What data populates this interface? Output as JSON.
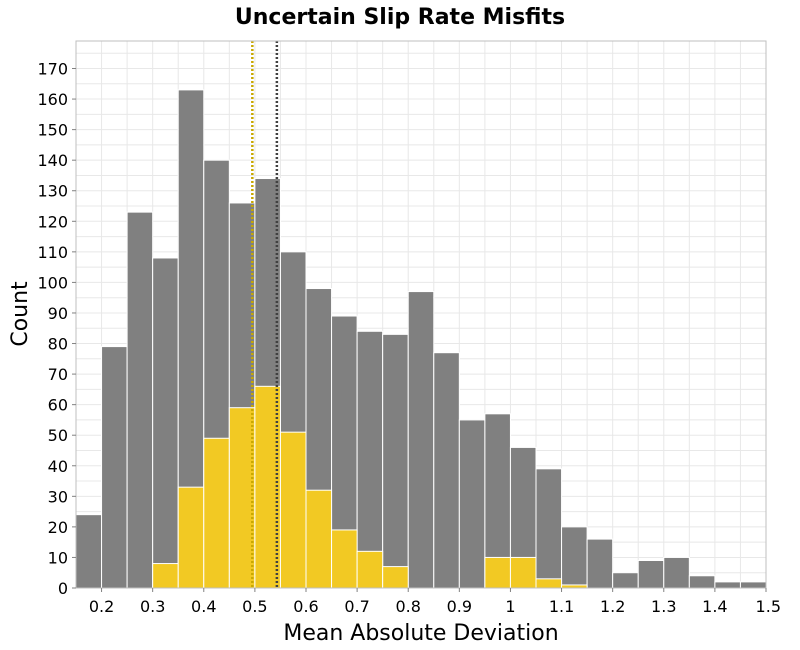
{
  "chart_data": {
    "type": "bar",
    "title": "Uncertain Slip Rate Misfits",
    "xlabel": "Mean Absolute Deviation",
    "ylabel": "Count",
    "xlim": [
      0.15,
      1.5
    ],
    "ylim": [
      0,
      179
    ],
    "xticks": [
      "0.2",
      "0.3",
      "0.4",
      "0.5",
      "0.6",
      "0.7",
      "0.8",
      "0.9",
      "1",
      "1.1",
      "1.2",
      "1.3",
      "1.4",
      "1.5"
    ],
    "yticks": [
      "0",
      "10",
      "20",
      "30",
      "40",
      "50",
      "60",
      "70",
      "80",
      "90",
      "100",
      "110",
      "120",
      "130",
      "140",
      "150",
      "160",
      "170"
    ],
    "bin_width": 0.05,
    "bin_centers": [
      0.175,
      0.225,
      0.275,
      0.325,
      0.375,
      0.425,
      0.475,
      0.525,
      0.575,
      0.625,
      0.675,
      0.725,
      0.775,
      0.825,
      0.875,
      0.925,
      0.975,
      1.025,
      1.075,
      1.125,
      1.175,
      1.225,
      1.275,
      1.325,
      1.375,
      1.425,
      1.475
    ],
    "grid": true,
    "series": [
      {
        "color": "#808080",
        "values": [
          24,
          79,
          123,
          108,
          163,
          140,
          126,
          134,
          110,
          98,
          89,
          84,
          83,
          97,
          77,
          55,
          57,
          46,
          39,
          20,
          16,
          5,
          9,
          10,
          4,
          2,
          2
        ]
      },
      {
        "color": "#f2c923",
        "values": [
          0,
          0,
          0,
          8,
          33,
          49,
          59,
          66,
          51,
          32,
          19,
          12,
          7,
          0,
          0,
          0,
          10,
          10,
          3,
          1,
          0,
          0,
          0,
          0,
          0,
          0,
          0
        ]
      }
    ],
    "reference_lines": [
      {
        "x": 0.495,
        "color": "#c8a800",
        "style": "dotted"
      },
      {
        "x": 0.543,
        "color": "#404040",
        "style": "dotted"
      }
    ]
  }
}
